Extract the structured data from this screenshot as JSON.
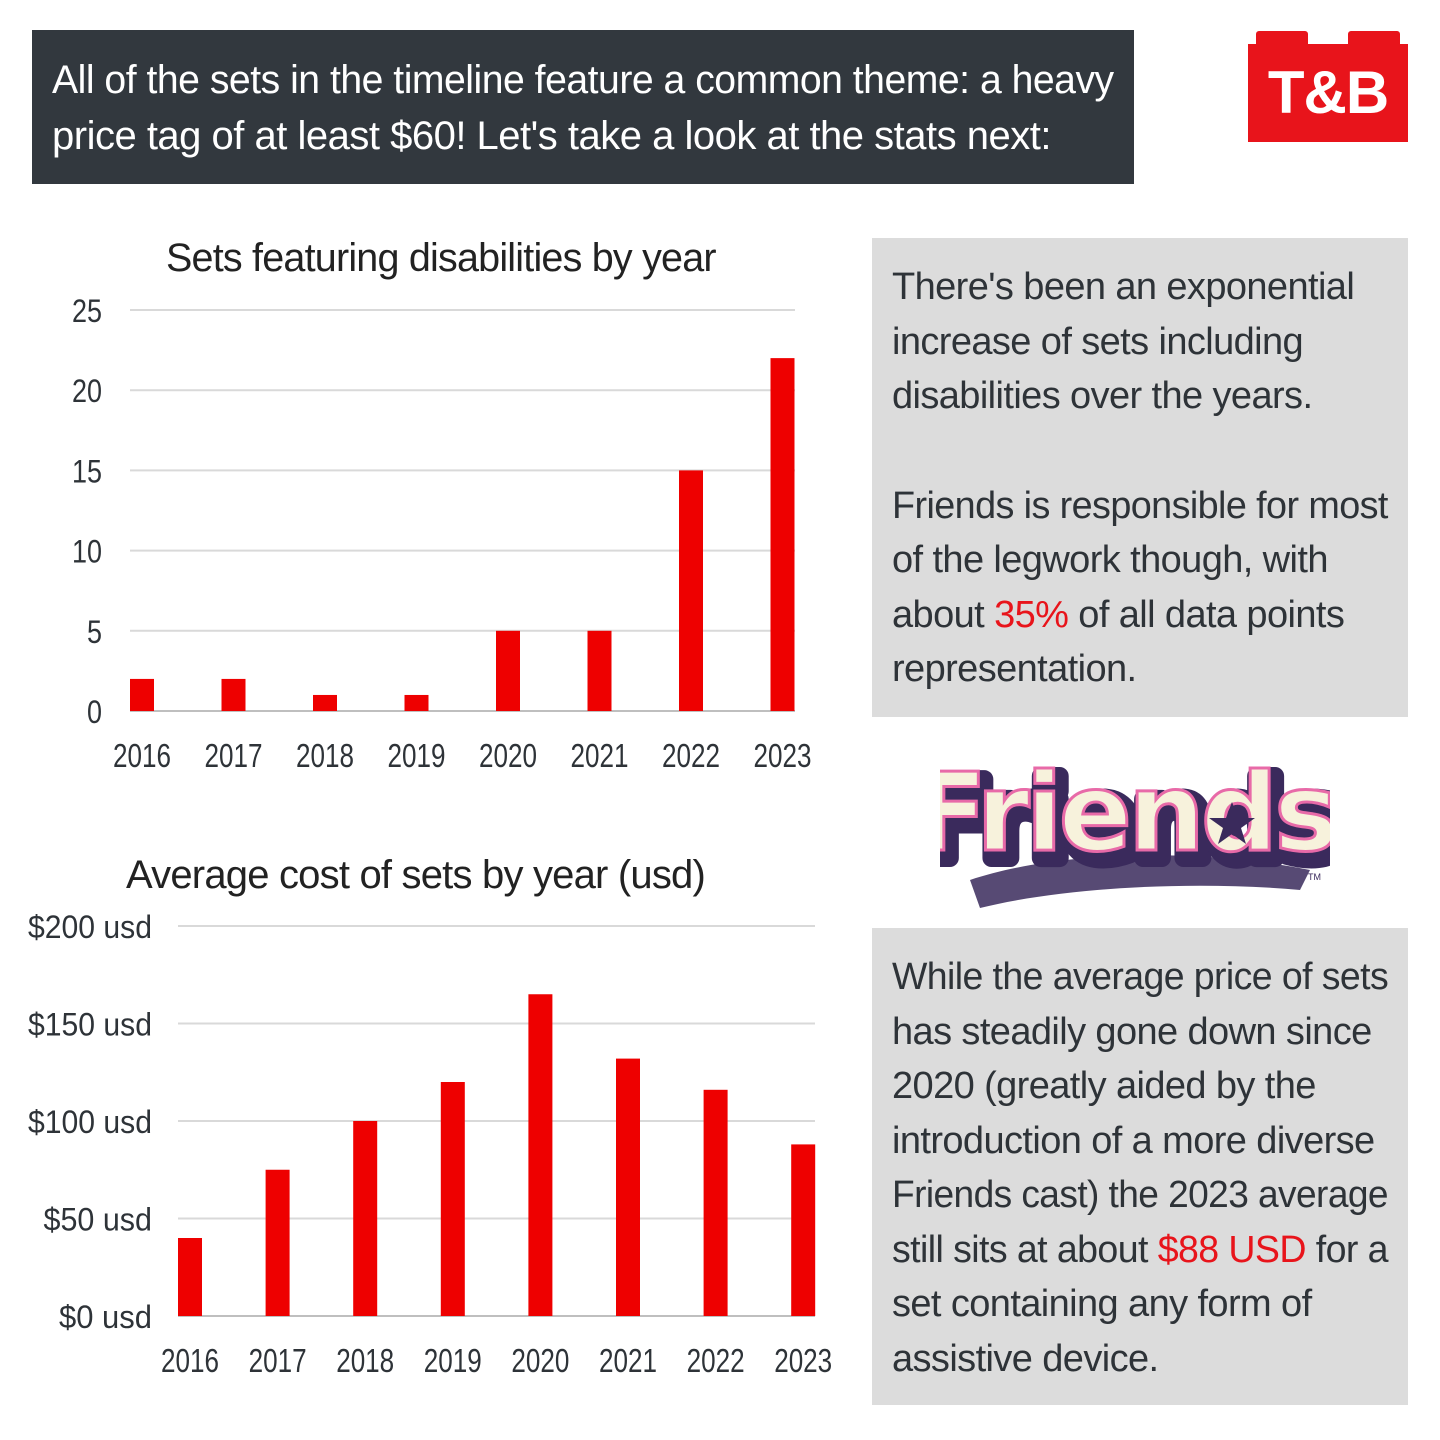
{
  "banner": {
    "lines": [
      "All of the sets in the timeline feature a common theme: a heavy",
      "price tag of at least $60! Let's take a look at the stats next:"
    ]
  },
  "logo": {
    "text": "T&B"
  },
  "panel1": {
    "para1": [
      "There's been an exponential",
      "increase of sets including",
      "disabilities over the years."
    ],
    "para2_lines": [
      "Friends is responsible for most",
      "of the legwork though, with"
    ],
    "para2_line3_before": "about ",
    "para2_highlight": "35%",
    "para2_line3_after": " of all data points",
    "para2_line4": "representation."
  },
  "panel2": {
    "lines": [
      "While the average price of sets",
      "has steadily gone down since",
      "2020 (greatly aided by the",
      "introduction of a more diverse",
      "Friends cast) the 2023 average"
    ],
    "line6_before": "still sits at about ",
    "highlight": "$88 USD",
    "line6_after": " for a",
    "line7": "set containing any form of",
    "line8": "assistive device."
  },
  "friends_logo": {
    "text": "Friends",
    "tm": "TM"
  },
  "colors": {
    "bar": "#ee0000",
    "accent": "#e8141b",
    "panel": "#dcdcdc",
    "banner": "#32383e"
  },
  "chart_data": [
    {
      "type": "bar",
      "title": "Sets featuring disabilities by year",
      "categories": [
        "2016",
        "2017",
        "2018",
        "2019",
        "2020",
        "2021",
        "2022",
        "2023"
      ],
      "values": [
        2,
        2,
        1,
        1,
        5,
        5,
        15,
        22
      ],
      "ylim": [
        0,
        25
      ],
      "yticks": [
        0,
        5,
        10,
        15,
        20,
        25
      ],
      "ytick_labels": [
        "0",
        "5",
        "10",
        "15",
        "20",
        "25"
      ],
      "grid": true
    },
    {
      "type": "bar",
      "title": "Average cost of sets by year (usd)",
      "categories": [
        "2016",
        "2017",
        "2018",
        "2019",
        "2020",
        "2021",
        "2022",
        "2023"
      ],
      "values": [
        40,
        75,
        100,
        120,
        165,
        132,
        116,
        88
      ],
      "ylim": [
        0,
        200
      ],
      "yticks": [
        0,
        50,
        100,
        150,
        200
      ],
      "ytick_labels": [
        "$0 usd",
        "$50 usd",
        "$100 usd",
        "$150 usd",
        "$200 usd"
      ],
      "grid": true
    }
  ]
}
